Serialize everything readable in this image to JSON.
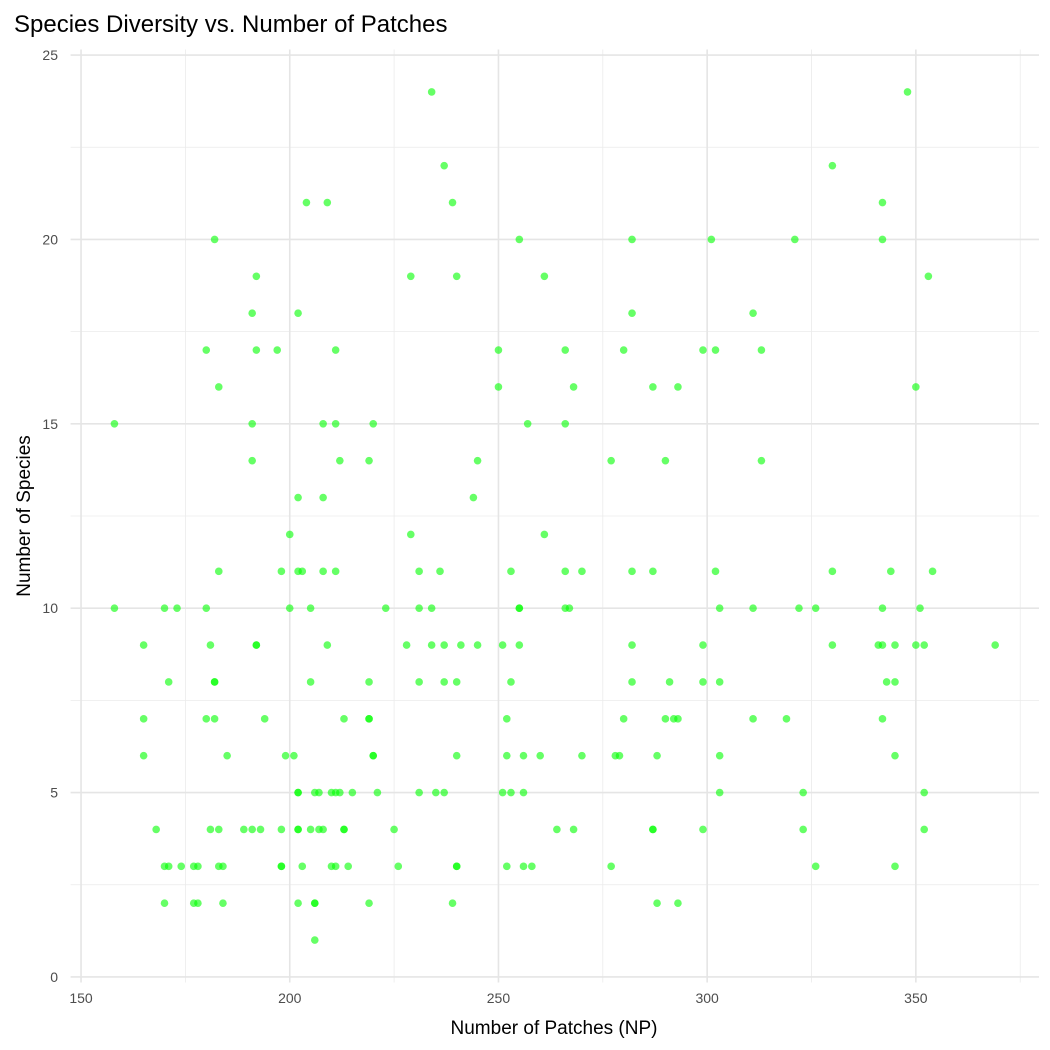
{
  "chart_data": {
    "type": "scatter",
    "title": "Species Diversity vs. Number of Patches",
    "xlabel": "Number of Patches (NP)",
    "ylabel": "Number of Species",
    "xlim": [
      147.5,
      379.5
    ],
    "ylim": [
      -0.15,
      25.15
    ],
    "xticks": [
      150,
      200,
      250,
      300,
      350
    ],
    "yticks": [
      0,
      5,
      10,
      15,
      20,
      25
    ],
    "grid": true,
    "point_color": "#00FF00",
    "point_opacity": 0.6,
    "points_by_y": {
      "24": [
        234,
        348
      ],
      "22": [
        237,
        330
      ],
      "21": [
        204,
        209,
        239,
        342
      ],
      "20": [
        182,
        255,
        282,
        301,
        321,
        342
      ],
      "19": [
        192,
        229,
        240,
        261,
        353
      ],
      "18": [
        191,
        202,
        282,
        311
      ],
      "17": [
        180,
        192,
        197,
        211,
        250,
        266,
        280,
        299,
        302,
        313
      ],
      "16": [
        183,
        250,
        268,
        287,
        293,
        350
      ],
      "15": [
        158,
        191,
        208,
        211,
        220,
        257,
        266
      ],
      "14": [
        191,
        212,
        219,
        245,
        277,
        290,
        313
      ],
      "13": [
        202,
        208,
        244
      ],
      "12": [
        200,
        229,
        261
      ],
      "11": [
        183,
        198,
        202,
        203,
        208,
        211,
        231,
        236,
        253,
        266,
        270,
        282,
        287,
        302,
        330,
        344,
        354
      ],
      "10": [
        158,
        170,
        173,
        180,
        200,
        205,
        223,
        231,
        234,
        255,
        255,
        266,
        267,
        303,
        311,
        322,
        326,
        342,
        351
      ],
      "9": [
        165,
        181,
        192,
        192,
        209,
        228,
        234,
        237,
        241,
        245,
        251,
        255,
        282,
        299,
        330,
        341,
        342,
        345,
        350,
        352,
        369
      ],
      "8": [
        171,
        182,
        182,
        205,
        219,
        231,
        237,
        240,
        253,
        282,
        291,
        299,
        303,
        343,
        345
      ],
      "7": [
        165,
        180,
        182,
        194,
        213,
        219,
        219,
        252,
        280,
        290,
        292,
        293,
        311,
        319,
        342
      ],
      "6": [
        165,
        185,
        199,
        201,
        220,
        220,
        240,
        252,
        256,
        260,
        270,
        278,
        279,
        288,
        303,
        345
      ],
      "5": [
        202,
        202,
        206,
        207,
        210,
        211,
        212,
        215,
        221,
        231,
        235,
        237,
        251,
        253,
        256,
        303,
        323,
        352
      ],
      "4": [
        168,
        181,
        183,
        189,
        191,
        193,
        198,
        202,
        202,
        205,
        207,
        208,
        213,
        213,
        225,
        264,
        268,
        287,
        287,
        299,
        323,
        352
      ],
      "3": [
        170,
        171,
        174,
        177,
        178,
        183,
        184,
        198,
        198,
        203,
        210,
        211,
        214,
        226,
        240,
        240,
        252,
        256,
        258,
        277,
        326,
        345
      ],
      "2": [
        170,
        177,
        178,
        184,
        202,
        206,
        206,
        219,
        239,
        288,
        293
      ],
      "1": [
        206
      ]
    }
  }
}
